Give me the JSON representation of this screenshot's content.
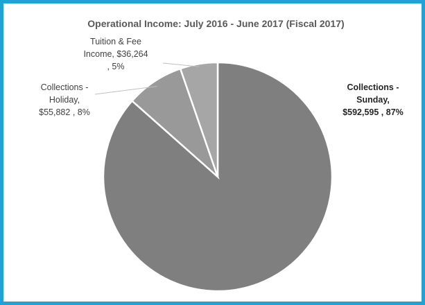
{
  "chart_data": {
    "type": "pie",
    "title": "Operational Income:  July 2016 - June 2017 (Fiscal 2017)",
    "slices": [
      {
        "name": "Collections - Sunday",
        "value": 592595,
        "percent": 87,
        "color": "#7f7f7f",
        "label_lines": [
          "Collections -",
          "Sunday,",
          "$592,595 , 87%"
        ]
      },
      {
        "name": "Collections - Holiday",
        "value": 55882,
        "percent": 8,
        "color": "#999999",
        "label_lines": [
          "Collections -",
          "Holiday,",
          "$55,882 , 8%"
        ]
      },
      {
        "name": "Tuition & Fee Income",
        "value": 36264,
        "percent": 5,
        "color": "#a6a6a6",
        "label_lines": [
          "Tuition & Fee",
          "Income,  $36,264",
          ", 5%"
        ]
      }
    ],
    "legend": "none",
    "slice_border_color": "#ffffff",
    "frame_color": "#1fa3d6"
  }
}
